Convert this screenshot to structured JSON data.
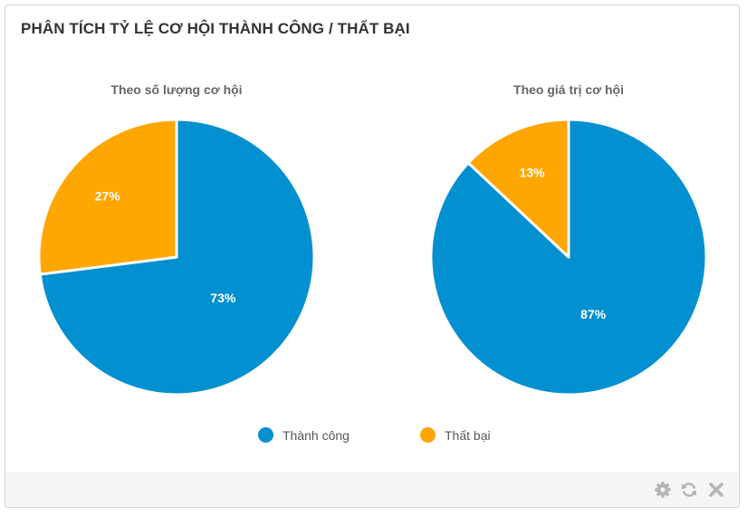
{
  "widget": {
    "title": "PHÂN TÍCH TỶ LỆ CƠ HỘI THÀNH CÔNG / THẤT BẠI"
  },
  "colors": {
    "success": "#0390d0",
    "fail": "#ffa600",
    "tool_icon": "#b5b5b5"
  },
  "legend": [
    {
      "label": "Thành công",
      "color": "#0390d0"
    },
    {
      "label": "Thất bại",
      "color": "#ffa600"
    }
  ],
  "footer": {
    "icons": [
      "gear-icon",
      "refresh-icon",
      "close-icon"
    ]
  },
  "chart_data": [
    {
      "type": "pie",
      "title": "Theo số lượng cơ hội",
      "categories": [
        "Thành công",
        "Thất bại"
      ],
      "values": [
        73,
        27
      ],
      "labels": [
        "73%",
        "27%"
      ],
      "legend": "bottom"
    },
    {
      "type": "pie",
      "title": "Theo giá trị cơ hội",
      "categories": [
        "Thành công",
        "Thất bại"
      ],
      "values": [
        87,
        13
      ],
      "labels": [
        "87%",
        "13%"
      ],
      "legend": "bottom"
    }
  ]
}
